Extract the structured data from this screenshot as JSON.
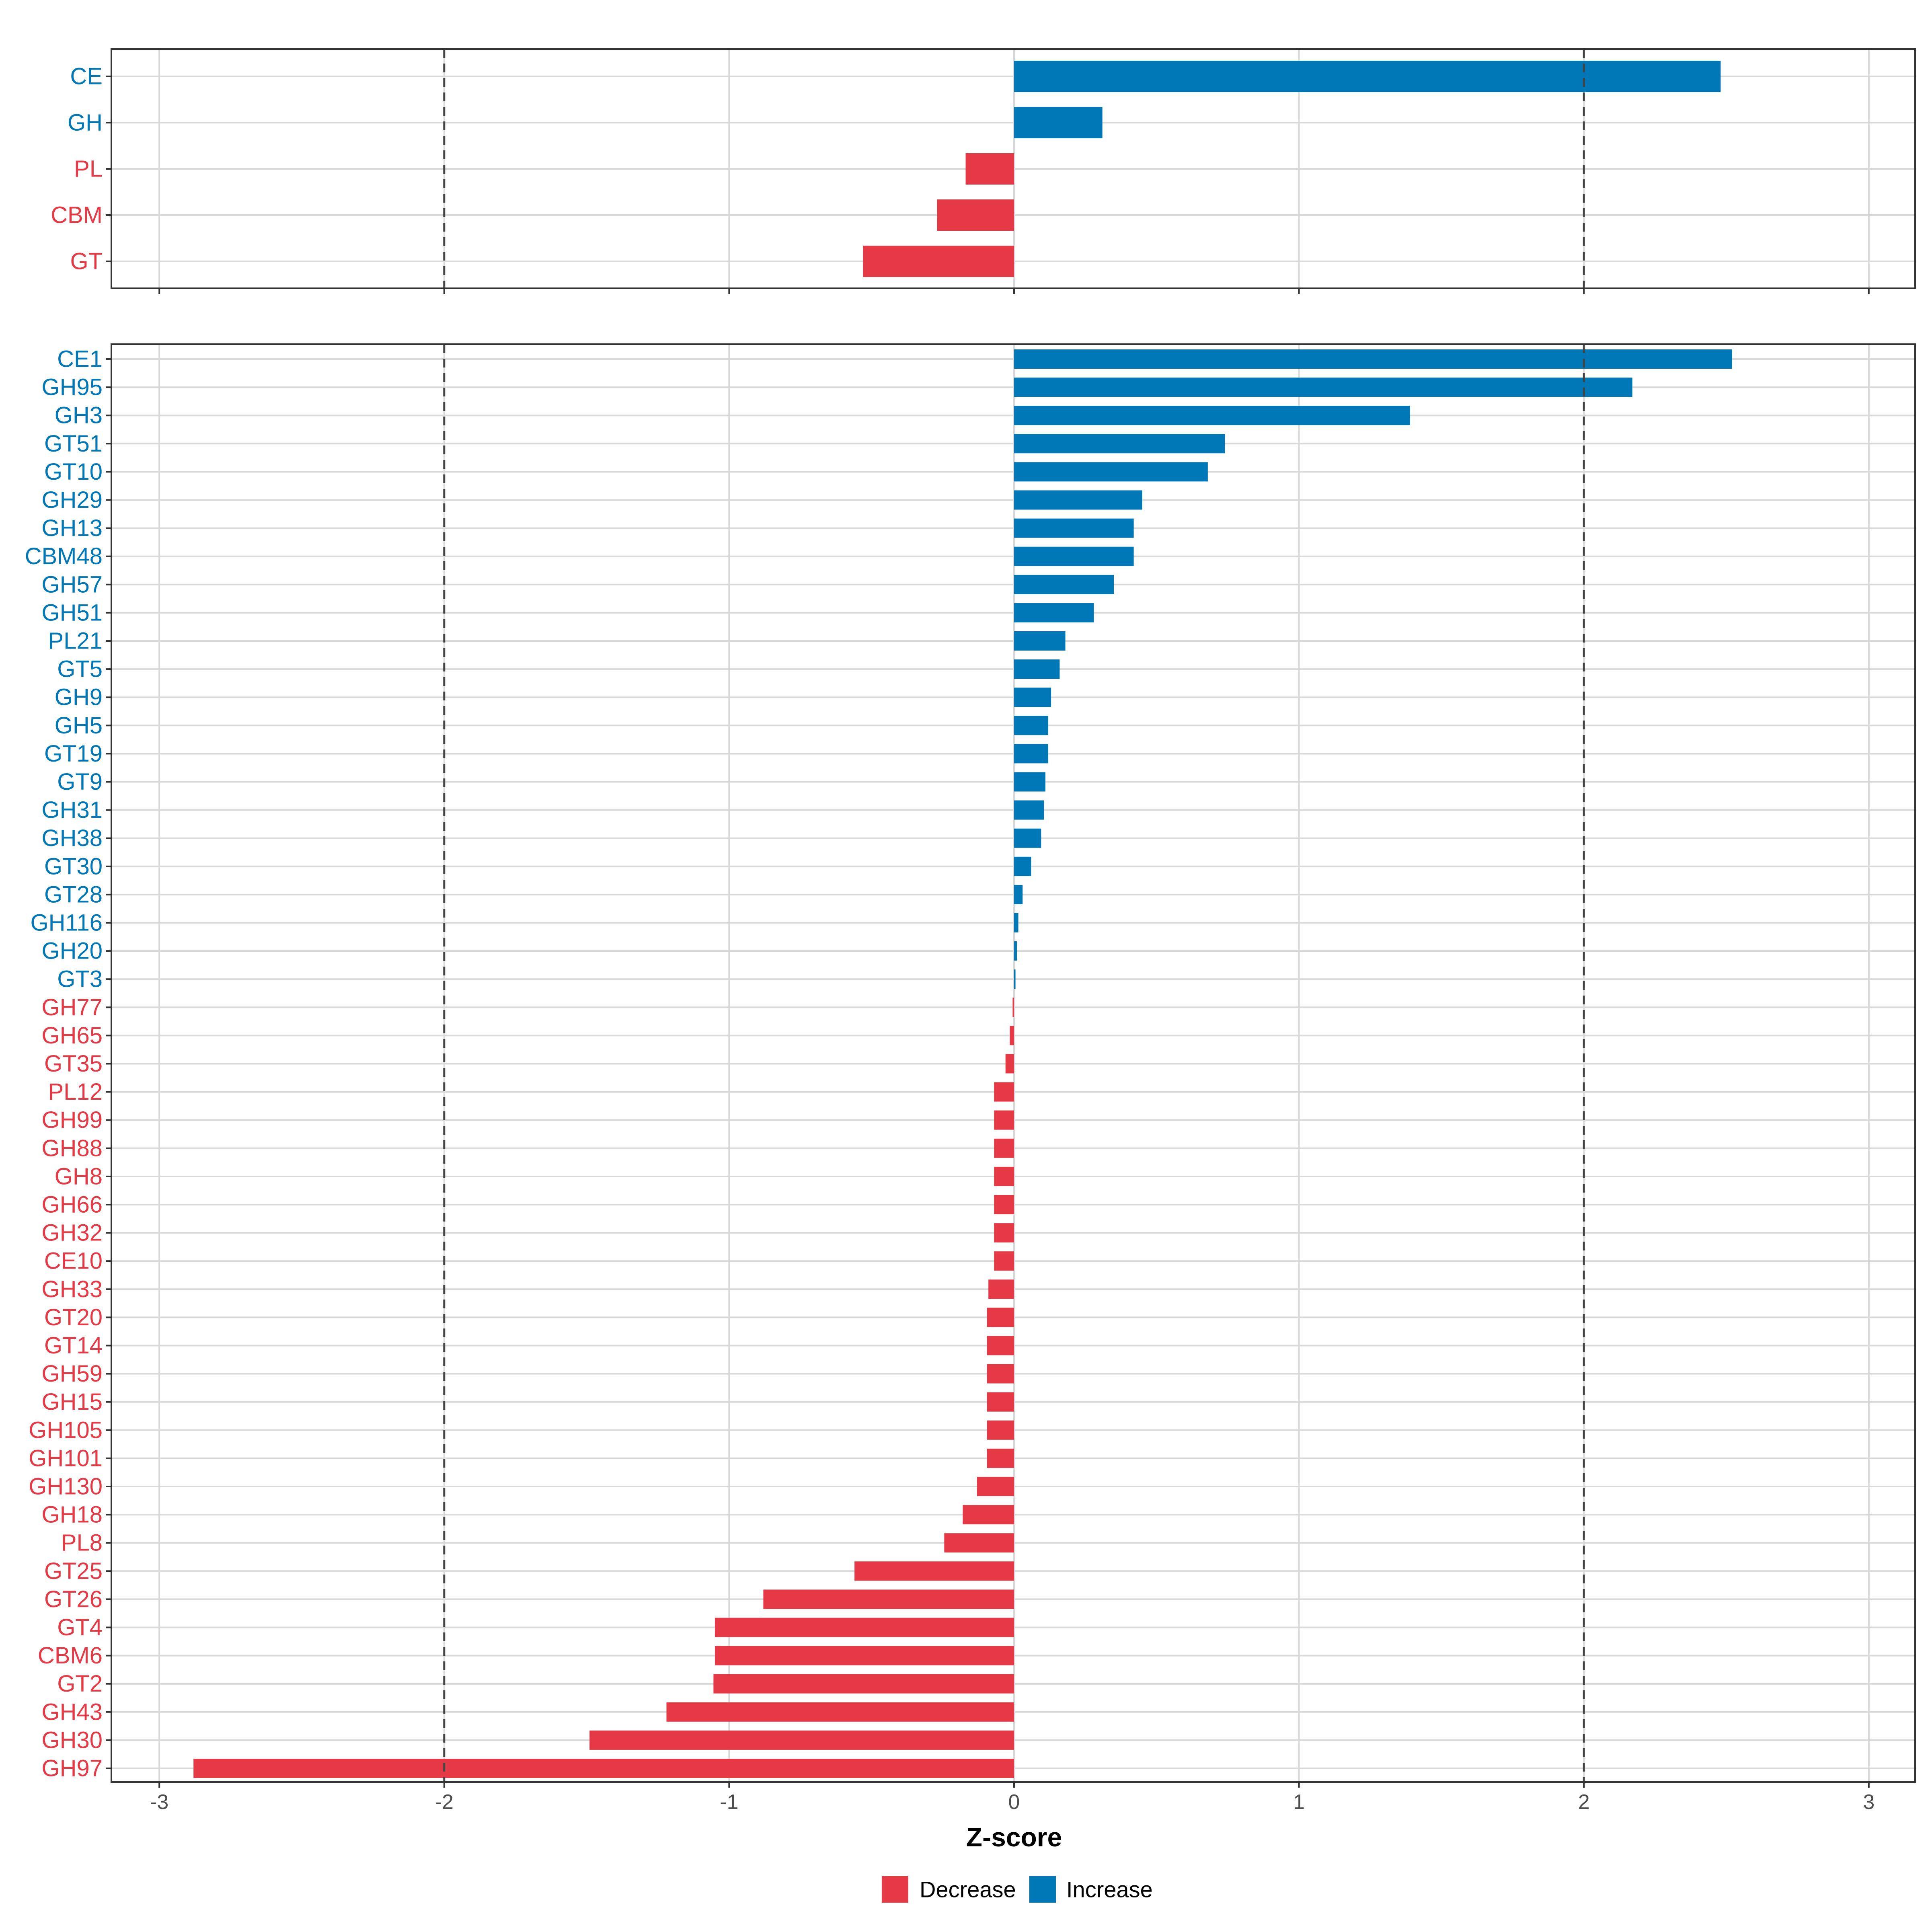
{
  "chart_data": [
    {
      "type": "bar",
      "orientation": "horizontal",
      "panel": "top",
      "title": "",
      "xlabel": "",
      "ylabel": "",
      "xlim": [
        -3.2,
        3.15
      ],
      "x_ticks": [
        -3,
        -2,
        -1,
        0,
        1,
        2,
        3
      ],
      "reference_lines": [
        -2,
        2
      ],
      "grid": true,
      "categories": [
        "CE",
        "GH",
        "PL",
        "CBM",
        "GT"
      ],
      "values": [
        2.48,
        0.31,
        -0.17,
        -0.27,
        -0.53
      ]
    },
    {
      "type": "bar",
      "orientation": "horizontal",
      "panel": "bottom",
      "title": "",
      "xlabel": "Z-score",
      "ylabel": "",
      "xlim": [
        -3.2,
        3.15
      ],
      "x_ticks": [
        -3,
        -2,
        -1,
        0,
        1,
        2,
        3
      ],
      "x_tick_labels": [
        "-3",
        "-2",
        "-1",
        "0",
        "1",
        "2",
        "3"
      ],
      "reference_lines": [
        -2,
        2
      ],
      "grid": true,
      "categories": [
        "CE1",
        "GH95",
        "GH3",
        "GT51",
        "GT10",
        "GH29",
        "GH13",
        "CBM48",
        "GH57",
        "GH51",
        "PL21",
        "GT5",
        "GH9",
        "GH5",
        "GT19",
        "GT9",
        "GH31",
        "GH38",
        "GT30",
        "GT28",
        "GH116",
        "GH20",
        "GT3",
        "GH77",
        "GH65",
        "GT35",
        "PL12",
        "GH99",
        "GH88",
        "GH8",
        "GH66",
        "GH32",
        "CE10",
        "GH33",
        "GT20",
        "GT14",
        "GH59",
        "GH15",
        "GH105",
        "GH101",
        "GH130",
        "GH18",
        "PL8",
        "GT25",
        "GT26",
        "GT4",
        "CBM6",
        "GT2",
        "GH43",
        "GH30",
        "GH97"
      ],
      "values": [
        2.52,
        2.17,
        1.39,
        0.74,
        0.68,
        0.45,
        0.42,
        0.42,
        0.35,
        0.28,
        0.18,
        0.16,
        0.13,
        0.12,
        0.12,
        0.11,
        0.105,
        0.095,
        0.06,
        0.03,
        0.015,
        0.01,
        0.005,
        -0.005,
        -0.015,
        -0.03,
        -0.07,
        -0.07,
        -0.07,
        -0.07,
        -0.07,
        -0.07,
        -0.07,
        -0.09,
        -0.095,
        -0.095,
        -0.095,
        -0.095,
        -0.095,
        -0.095,
        -0.13,
        -0.18,
        -0.245,
        -0.56,
        -0.88,
        -1.05,
        -1.05,
        -1.055,
        -1.22,
        -1.49,
        -2.88
      ]
    }
  ],
  "legend": {
    "position": "bottom",
    "items": [
      {
        "label": "Decrease",
        "color": "#E63946"
      },
      {
        "label": "Increase",
        "color": "#0077B6"
      }
    ]
  },
  "colors": {
    "decrease": "#E63946",
    "increase": "#0077B6",
    "grid": "#D9D9D9",
    "panel_border": "#333333",
    "reference_line": "#444444"
  }
}
